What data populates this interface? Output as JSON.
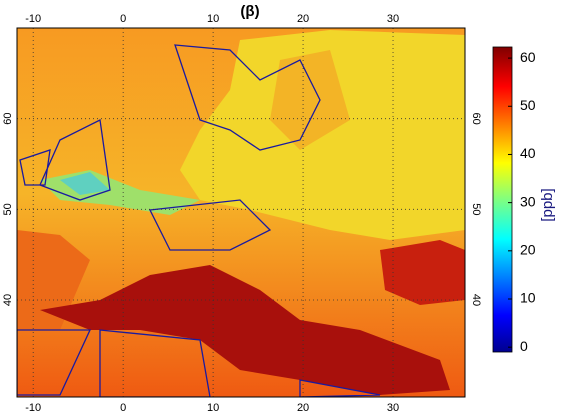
{
  "title": "(β)",
  "map": {
    "lon_ticks": [
      -10,
      0,
      10,
      20,
      30
    ],
    "lat_ticks": [
      40,
      50,
      60
    ],
    "lonlim": [
      -11.8,
      38
    ],
    "latlim": [
      29.3,
      70
    ]
  },
  "colorbar": {
    "label": "[ppb]",
    "ticks": [
      0,
      10,
      20,
      30,
      40,
      50,
      60
    ],
    "lim": [
      -1,
      62.3
    ]
  }
}
